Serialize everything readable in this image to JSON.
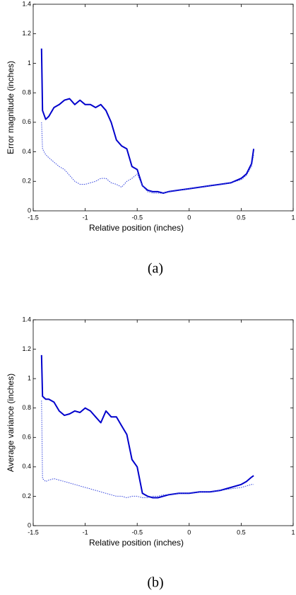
{
  "chart_data": [
    {
      "type": "line",
      "caption": "(a)",
      "x_label": "Relative position (inches)",
      "y_label": "Error magnitude (inches)",
      "x": [
        -1.42,
        -1.41,
        -1.38,
        -1.35,
        -1.3,
        -1.25,
        -1.2,
        -1.15,
        -1.1,
        -1.05,
        -1.0,
        -0.95,
        -0.9,
        -0.85,
        -0.8,
        -0.75,
        -0.7,
        -0.65,
        -0.6,
        -0.55,
        -0.5,
        -0.45,
        -0.4,
        -0.35,
        -0.3,
        -0.25,
        -0.2,
        -0.1,
        0,
        0.1,
        0.2,
        0.3,
        0.4,
        0.5,
        0.55,
        0.6,
        0.62
      ],
      "series": [
        {
          "color": "#0000cc",
          "line_style": "solid",
          "values": [
            1.1,
            0.68,
            0.62,
            0.64,
            0.7,
            0.72,
            0.75,
            0.76,
            0.72,
            0.75,
            0.72,
            0.72,
            0.7,
            0.72,
            0.68,
            0.6,
            0.48,
            0.44,
            0.42,
            0.3,
            0.28,
            0.17,
            0.14,
            0.13,
            0.13,
            0.12,
            0.13,
            0.14,
            0.15,
            0.16,
            0.17,
            0.18,
            0.19,
            0.22,
            0.25,
            0.32,
            0.42
          ]
        },
        {
          "color": "#3344dd",
          "line_style": "dotted",
          "values": [
            0.6,
            0.42,
            0.38,
            0.36,
            0.33,
            0.3,
            0.28,
            0.24,
            0.2,
            0.18,
            0.18,
            0.19,
            0.2,
            0.22,
            0.22,
            0.19,
            0.18,
            0.16,
            0.2,
            0.22,
            0.25,
            0.17,
            0.13,
            0.12,
            0.12,
            0.12,
            0.13,
            0.14,
            0.15,
            0.16,
            0.17,
            0.18,
            0.19,
            0.21,
            0.24,
            0.3,
            0.38
          ]
        }
      ],
      "xlim": [
        -1.5,
        1
      ],
      "xticks": [
        -1.5,
        -1,
        -0.5,
        0,
        0.5,
        1
      ],
      "ylim": [
        0,
        1.4
      ],
      "yticks": [
        0,
        0.2,
        0.4,
        0.6,
        0.8,
        1,
        1.2,
        1.4
      ]
    },
    {
      "type": "line",
      "caption": "(b)",
      "x_label": "Relative position (inches)",
      "y_label": "Average variance (inches)",
      "x": [
        -1.42,
        -1.41,
        -1.38,
        -1.35,
        -1.3,
        -1.25,
        -1.2,
        -1.15,
        -1.1,
        -1.05,
        -1.0,
        -0.95,
        -0.9,
        -0.85,
        -0.8,
        -0.75,
        -0.7,
        -0.65,
        -0.6,
        -0.55,
        -0.5,
        -0.45,
        -0.4,
        -0.35,
        -0.3,
        -0.25,
        -0.2,
        -0.1,
        0,
        0.1,
        0.2,
        0.3,
        0.4,
        0.5,
        0.55,
        0.6,
        0.62
      ],
      "series": [
        {
          "color": "#0000cc",
          "line_style": "solid",
          "values": [
            1.16,
            0.88,
            0.86,
            0.86,
            0.84,
            0.78,
            0.75,
            0.76,
            0.78,
            0.77,
            0.8,
            0.78,
            0.74,
            0.7,
            0.78,
            0.74,
            0.74,
            0.68,
            0.62,
            0.45,
            0.4,
            0.22,
            0.2,
            0.19,
            0.19,
            0.2,
            0.21,
            0.22,
            0.22,
            0.23,
            0.23,
            0.24,
            0.26,
            0.28,
            0.3,
            0.33,
            0.34
          ]
        },
        {
          "color": "#3344dd",
          "line_style": "dotted",
          "values": [
            0.85,
            0.32,
            0.3,
            0.31,
            0.32,
            0.31,
            0.3,
            0.29,
            0.28,
            0.27,
            0.26,
            0.25,
            0.24,
            0.23,
            0.22,
            0.21,
            0.2,
            0.2,
            0.19,
            0.2,
            0.2,
            0.19,
            0.19,
            0.2,
            0.2,
            0.21,
            0.21,
            0.22,
            0.22,
            0.23,
            0.23,
            0.24,
            0.25,
            0.26,
            0.27,
            0.28,
            0.28
          ]
        }
      ],
      "xlim": [
        -1.5,
        1
      ],
      "xticks": [
        -1.5,
        -1,
        -0.5,
        0,
        0.5,
        1
      ],
      "ylim": [
        0,
        1.4
      ],
      "yticks": [
        0,
        0.2,
        0.4,
        0.6,
        0.8,
        1,
        1.2,
        1.4
      ]
    }
  ]
}
